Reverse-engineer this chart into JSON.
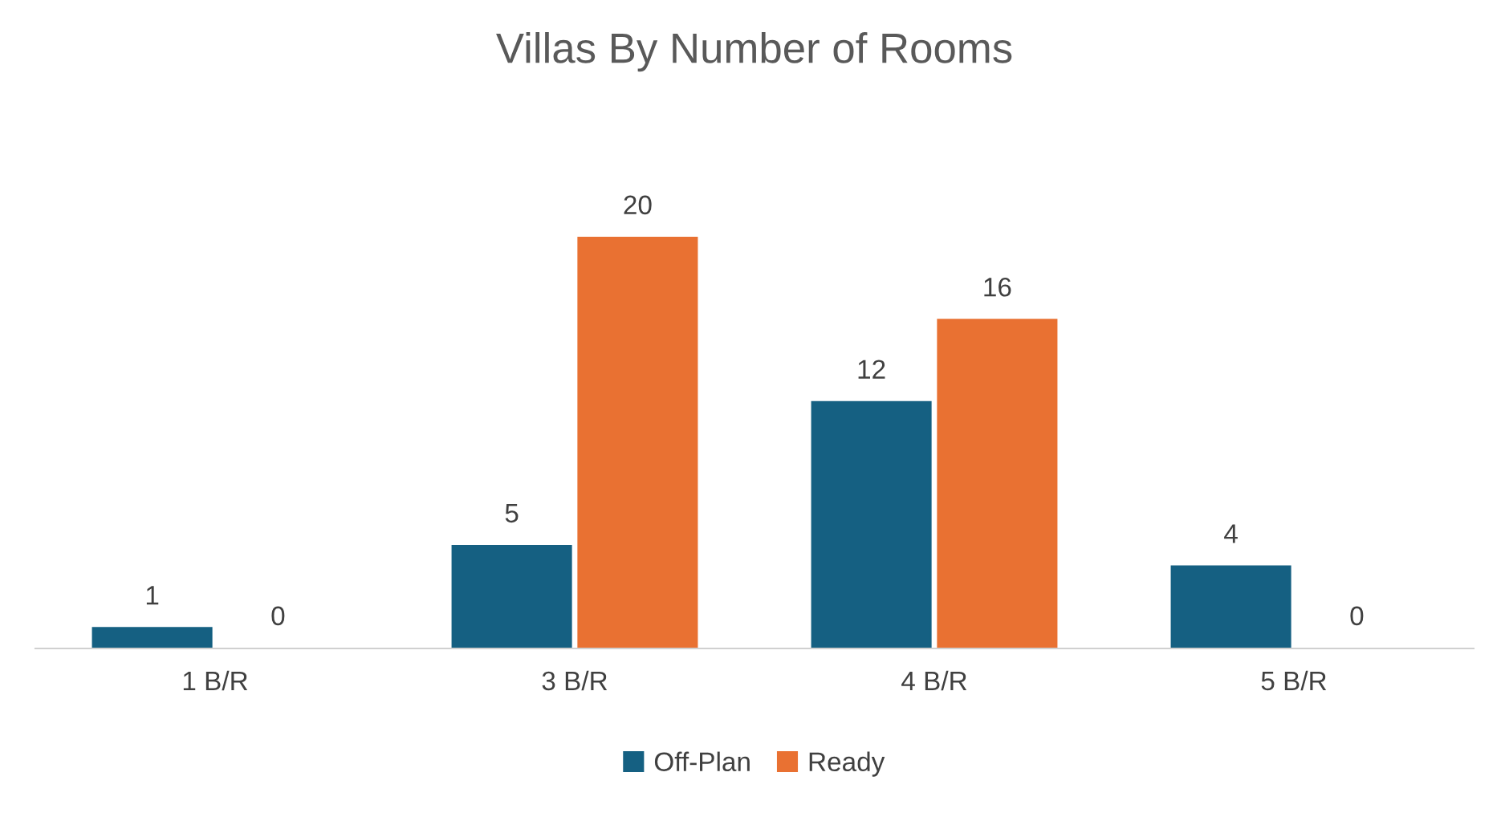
{
  "chart_data": {
    "type": "bar",
    "title": "Villas By Number of Rooms",
    "categories": [
      "1 B/R",
      "3 B/R",
      "4 B/R",
      "5 B/R"
    ],
    "series": [
      {
        "name": "Off-Plan",
        "color": "#156082",
        "values": [
          1,
          5,
          12,
          4
        ]
      },
      {
        "name": "Ready",
        "color": "#e97132",
        "values": [
          0,
          20,
          16,
          0
        ]
      }
    ],
    "data_labels": true,
    "legend": "bottom"
  }
}
